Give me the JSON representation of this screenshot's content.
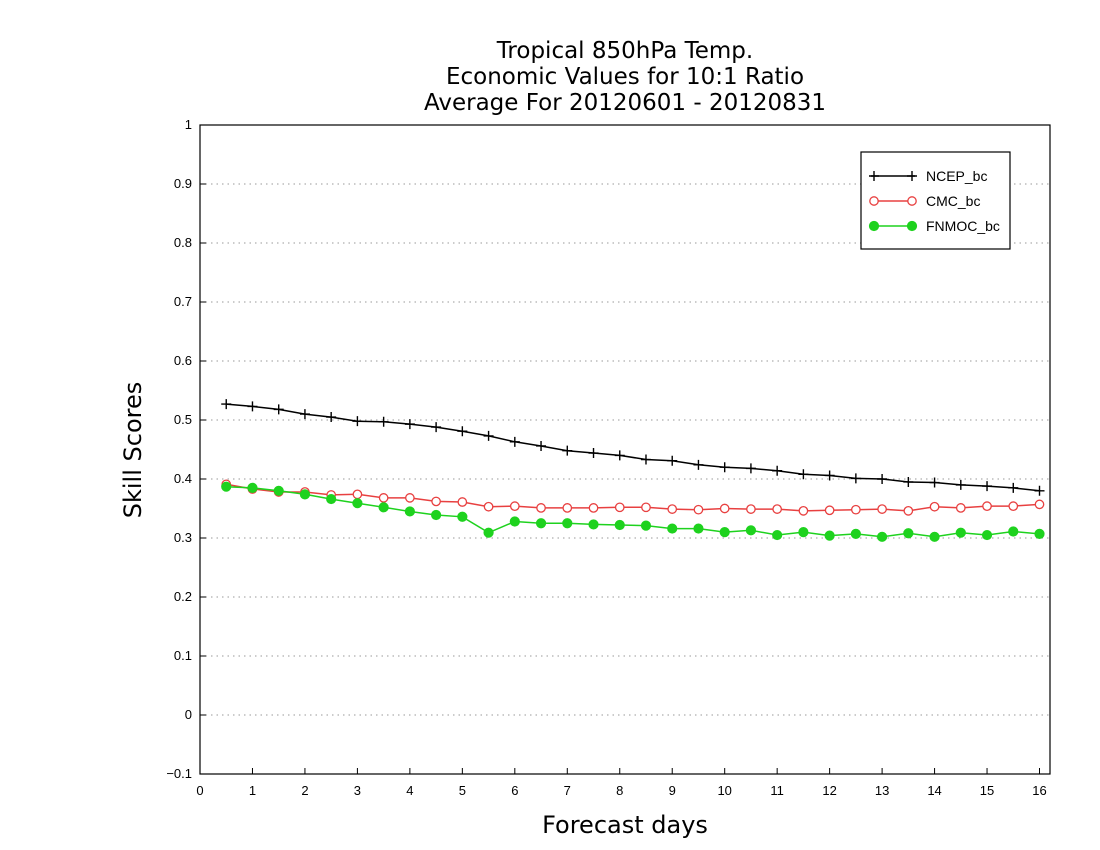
{
  "chart_data": {
    "type": "line",
    "title": [
      "Tropical 850hPa Temp.",
      "Economic Values for 10:1 Ratio",
      "Average For 20120601 - 20120831"
    ],
    "xlabel": "Forecast days",
    "ylabel": "Skill Scores",
    "xlim": [
      0,
      16.2
    ],
    "ylim": [
      -0.1,
      1
    ],
    "xticks": [
      0,
      1,
      2,
      3,
      4,
      5,
      6,
      7,
      8,
      9,
      10,
      11,
      12,
      13,
      14,
      15,
      16
    ],
    "yticks": [
      -0.1,
      0,
      0.1,
      0.2,
      0.3,
      0.4,
      0.5,
      0.6,
      0.7,
      0.8,
      0.9,
      1
    ],
    "grid": "horizontal-dotted",
    "legend_position": "top-right",
    "x": [
      0.5,
      1,
      1.5,
      2,
      2.5,
      3,
      3.5,
      4,
      4.5,
      5,
      5.5,
      6,
      6.5,
      7,
      7.5,
      8,
      8.5,
      9,
      9.5,
      10,
      10.5,
      11,
      11.5,
      12,
      12.5,
      13,
      13.5,
      14,
      14.5,
      15,
      15.5,
      16
    ],
    "series": [
      {
        "name": "NCEP_bc",
        "color": "#000000",
        "marker": "plus",
        "values": [
          0.527,
          0.523,
          0.518,
          0.51,
          0.505,
          0.498,
          0.497,
          0.493,
          0.488,
          0.481,
          0.473,
          0.463,
          0.456,
          0.448,
          0.444,
          0.44,
          0.433,
          0.431,
          0.424,
          0.42,
          0.418,
          0.414,
          0.408,
          0.406,
          0.401,
          0.4,
          0.395,
          0.394,
          0.39,
          0.388,
          0.385,
          0.38
        ]
      },
      {
        "name": "CMC_bc",
        "color": "#e84040",
        "marker": "open-circle",
        "values": [
          0.391,
          0.383,
          0.378,
          0.378,
          0.373,
          0.374,
          0.368,
          0.368,
          0.362,
          0.361,
          0.353,
          0.354,
          0.351,
          0.351,
          0.351,
          0.352,
          0.352,
          0.349,
          0.348,
          0.35,
          0.349,
          0.349,
          0.346,
          0.347,
          0.348,
          0.349,
          0.346,
          0.353,
          0.351,
          0.354,
          0.354,
          0.357
        ]
      },
      {
        "name": "FNMOC_bc",
        "color": "#1ed21e",
        "marker": "filled-circle",
        "values": [
          0.387,
          0.385,
          0.38,
          0.374,
          0.366,
          0.359,
          0.352,
          0.345,
          0.339,
          0.336,
          0.309,
          0.328,
          0.325,
          0.325,
          0.323,
          0.322,
          0.321,
          0.316,
          0.316,
          0.31,
          0.313,
          0.305,
          0.31,
          0.304,
          0.307,
          0.302,
          0.308,
          0.302,
          0.309,
          0.305,
          0.311,
          0.307
        ]
      }
    ]
  }
}
